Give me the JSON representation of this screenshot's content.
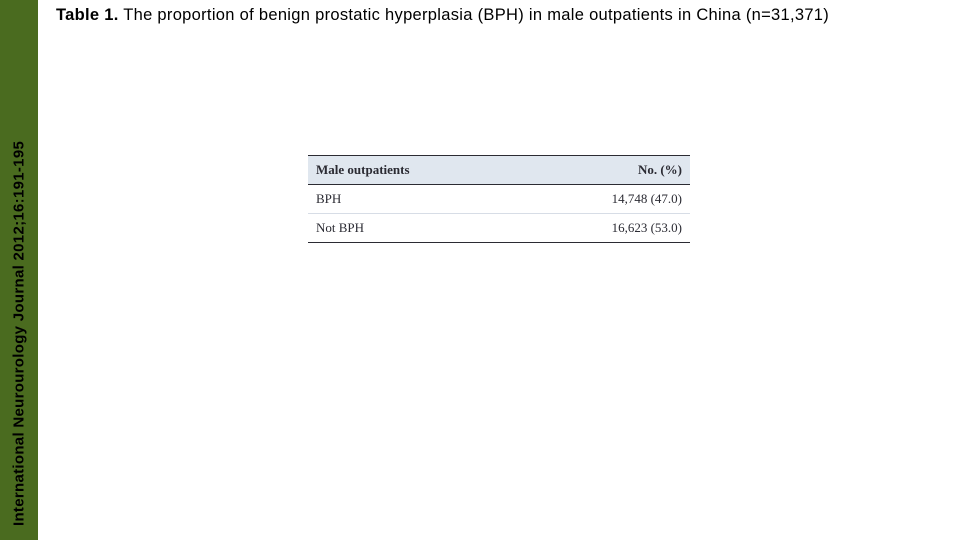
{
  "sidebar": {
    "citation": "International Neurourology Journal 2012;16:191-195"
  },
  "title": {
    "label": "Table 1.",
    "caption": "The proportion of benign prostatic hyperplasia (BPH) in male outpatients in China (n=31,371)"
  },
  "table": {
    "type": "table",
    "header_background": "#e0e7ef",
    "border_color": "#2b2b33",
    "row_divider_color": "#d7dde6",
    "text_color": "#2b2b33",
    "font_family": "serif",
    "font_size_pt": 10,
    "columns": [
      {
        "key": "Male outpatients",
        "align": "left"
      },
      {
        "key": "No. (%)",
        "align": "right"
      }
    ],
    "rows": [
      {
        "label": "BPH",
        "value": "14,748 (47.0)"
      },
      {
        "label": "Not BPH",
        "value": "16,623 (53.0)"
      }
    ]
  },
  "colors": {
    "sidebar_bg": "#4a6b1f",
    "page_bg": "#ffffff",
    "title_text": "#000000"
  }
}
